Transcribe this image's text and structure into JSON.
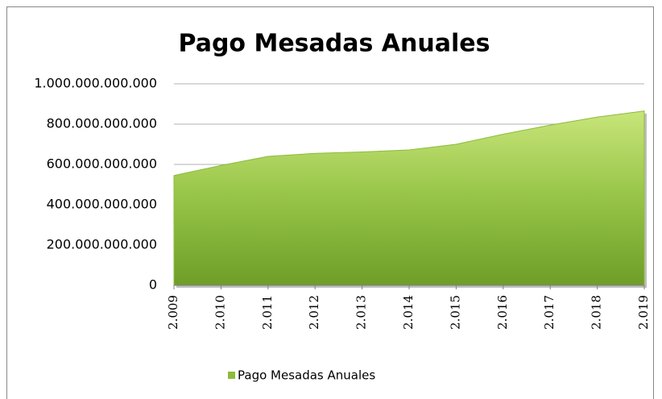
{
  "chart_data": {
    "type": "area",
    "title": "Pago Mesadas Anuales",
    "categories": [
      "2.009",
      "2.010",
      "2.011",
      "2.012",
      "2.013",
      "2.014",
      "2.015",
      "2.016",
      "2.017",
      "2.018",
      "2.019"
    ],
    "series": [
      {
        "name": "Pago Mesadas Anuales",
        "color": "#8dbb3c",
        "values": [
          545000000000,
          595000000000,
          640000000000,
          655000000000,
          662000000000,
          672000000000,
          700000000000,
          750000000000,
          795000000000,
          835000000000,
          865000000000
        ]
      }
    ],
    "ylim": [
      0,
      1000000000000
    ],
    "yticks": [
      0,
      {
        "value": 200000000000,
        "label": "200.000.000.000"
      },
      {
        "value": 400000000000,
        "label": "400.000.000.000"
      },
      {
        "value": 600000000000,
        "label": "600.000.000.000"
      },
      {
        "value": 800000000000,
        "label": "800.000.000.000"
      },
      {
        "value": 1000000000000,
        "label": "1.000.000.000.000"
      }
    ],
    "grid": true,
    "legend": "bottom"
  }
}
